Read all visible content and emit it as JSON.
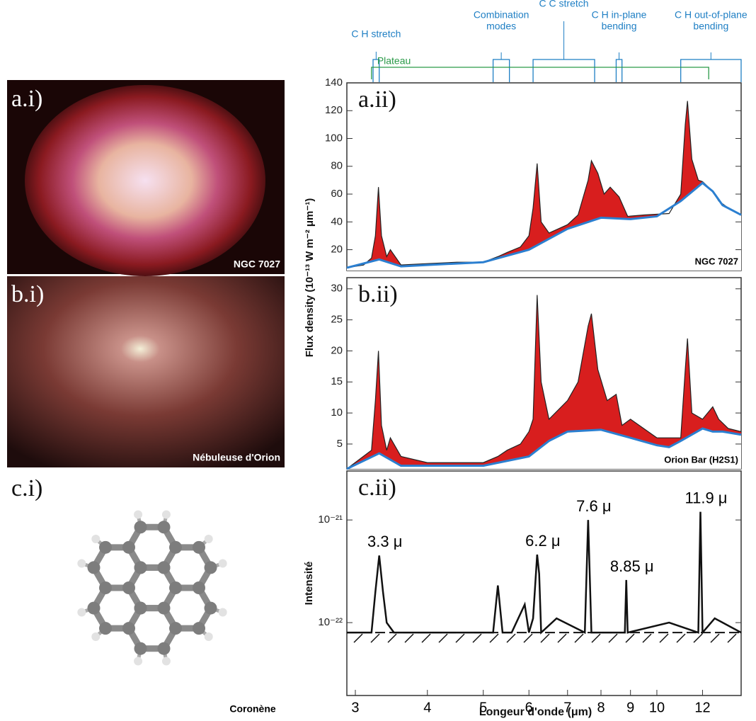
{
  "panels": [
    {
      "label": "a.i)",
      "caption": "NGC 7027"
    },
    {
      "label": "b.i)",
      "caption": "Nébuleuse d'Orion"
    },
    {
      "label": "c.i)",
      "caption": "Coronène"
    }
  ],
  "chart_data": [
    {
      "type": "line",
      "label": "a.ii)",
      "caption": "NGC 7027",
      "ylabel": "Flux density (10⁻¹³ W m⁻² μm⁻¹)",
      "xscale": "log",
      "xlim": [
        2.9,
        14
      ],
      "ylim": [
        5,
        140
      ],
      "yticks": [
        20,
        40,
        60,
        80,
        100,
        120,
        140
      ],
      "bands": [
        {
          "lines": [
            "C H stretch"
          ],
          "range": [
            3.22,
            3.3
          ],
          "color": "#1f7fc4"
        },
        {
          "lines": [
            "Combination",
            "modes"
          ],
          "range": [
            5.2,
            5.55
          ],
          "color": "#1f7fc4"
        },
        {
          "lines": [
            "C C stretch"
          ],
          "range": [
            6.1,
            7.8
          ],
          "color": "#1f7fc4"
        },
        {
          "lines": [
            "C H in-plane",
            "bending"
          ],
          "range": [
            8.5,
            8.7
          ],
          "color": "#1f7fc4"
        },
        {
          "lines": [
            "C H out-of-plane",
            "bending"
          ],
          "range": [
            11,
            14
          ],
          "color": "#1f7fc4"
        },
        {
          "lines": [
            "Plateau"
          ],
          "range": [
            3.2,
            12.3
          ],
          "color": "#2a9a48"
        }
      ],
      "fill_color": "#d81e1e",
      "series": [
        {
          "color": "#222222",
          "x": [
            2.9,
            3.1,
            3.2,
            3.25,
            3.29,
            3.33,
            3.4,
            3.45,
            3.6,
            4,
            4.5,
            5,
            5.3,
            5.5,
            5.8,
            6.0,
            6.1,
            6.2,
            6.3,
            6.5,
            7,
            7.3,
            7.6,
            7.7,
            7.9,
            8.1,
            8.3,
            8.6,
            8.9,
            9.5,
            10.5,
            11,
            11.2,
            11.3,
            11.5,
            11.8,
            12,
            12.5,
            12.8,
            13.3,
            14
          ],
          "values": [
            7,
            9,
            14,
            30,
            65,
            30,
            15,
            20,
            9,
            10,
            11,
            11,
            15,
            18,
            22,
            30,
            50,
            82,
            40,
            32,
            38,
            45,
            70,
            84,
            75,
            60,
            65,
            58,
            44,
            45,
            46,
            60,
            110,
            127,
            85,
            70,
            69,
            62,
            55,
            50,
            45
          ]
        },
        {
          "color": "#2b7fd0",
          "x": [
            2.9,
            3.3,
            3.6,
            4,
            5,
            6,
            7,
            8,
            9,
            10,
            11,
            12,
            12.5,
            13,
            14
          ],
          "values": [
            7,
            13,
            8,
            9,
            11,
            20,
            35,
            43,
            42,
            44,
            55,
            68,
            62,
            52,
            45
          ]
        }
      ]
    },
    {
      "type": "line",
      "label": "b.ii)",
      "caption": "Orion Bar (H2S1)",
      "xscale": "log",
      "xlim": [
        2.9,
        14
      ],
      "ylim": [
        1,
        31.8
      ],
      "yticks": [
        5,
        10,
        15,
        20,
        25,
        30
      ],
      "fill_color": "#d81e1e",
      "series": [
        {
          "color": "#222222",
          "x": [
            2.9,
            3.2,
            3.25,
            3.29,
            3.33,
            3.4,
            3.45,
            3.6,
            4,
            5,
            5.3,
            5.5,
            5.8,
            6.0,
            6.1,
            6.2,
            6.3,
            6.5,
            7,
            7.3,
            7.6,
            7.7,
            7.9,
            8.2,
            8.5,
            8.7,
            9,
            10,
            11,
            11.2,
            11.3,
            11.5,
            12,
            12.5,
            12.8,
            13.3,
            14
          ],
          "values": [
            1,
            4,
            12,
            20,
            8,
            4,
            6,
            3,
            2,
            2,
            3,
            4,
            5,
            7,
            9,
            29,
            15,
            9,
            12,
            15,
            24,
            26,
            17,
            12,
            13,
            8,
            9,
            6,
            6,
            17,
            22,
            10,
            9,
            11,
            9,
            7.5,
            7
          ]
        },
        {
          "color": "#2b7fd0",
          "x": [
            2.9,
            3.3,
            3.6,
            4,
            5,
            6,
            6.5,
            7,
            8,
            9,
            10,
            10.5,
            11,
            12,
            12.5,
            13,
            14
          ],
          "values": [
            1,
            3.5,
            1.5,
            1.5,
            1.5,
            3,
            5.5,
            7,
            7.3,
            6,
            4.8,
            4.5,
            5.5,
            7.5,
            7,
            7,
            6.5
          ]
        }
      ]
    },
    {
      "type": "line",
      "label": "c.ii)",
      "ylabel": "Intensité",
      "xlabel": "Longeur d'onde (μm)",
      "xscale": "log",
      "yscale": "log",
      "xlim": [
        2.9,
        14
      ],
      "ylim": [
        1.95e-23,
        3e-21
      ],
      "xticks": [
        3,
        4,
        5,
        6,
        7,
        8,
        9,
        10,
        12
      ],
      "yticks": [
        {
          "value": 1e-22,
          "label": "10⁻²²"
        },
        {
          "value": 1e-21,
          "label": "10⁻²¹"
        }
      ],
      "annotations": [
        {
          "text": "3.3 μ",
          "x": 3.3,
          "y": 4.5e-22
        },
        {
          "text": "6.2 μ",
          "x": 6.2,
          "y": 4.6e-22
        },
        {
          "text": "7.6 μ",
          "x": 7.6,
          "y": 1e-21
        },
        {
          "text": "8.85 μ",
          "x": 8.85,
          "y": 2.6e-22
        },
        {
          "text": "11.9 μ",
          "x": 11.9,
          "y": 1.2e-21
        }
      ],
      "series": [
        {
          "color": "#111111",
          "x": [
            2.9,
            3.2,
            3.25,
            3.3,
            3.35,
            3.4,
            3.5,
            5.2,
            5.3,
            5.4,
            5.6,
            5.9,
            6.0,
            6.1,
            6.2,
            6.25,
            6.3,
            6.7,
            7.5,
            7.6,
            7.7,
            8.8,
            8.85,
            8.9,
            10.5,
            11.8,
            11.9,
            12.0,
            12.6,
            14
          ],
          "values": [
            8e-23,
            8e-23,
            2e-22,
            4.5e-22,
            2e-22,
            1e-22,
            8e-23,
            8e-23,
            2.3e-22,
            8e-23,
            8e-23,
            1.5e-22,
            8e-23,
            1.1e-22,
            4.6e-22,
            3e-22,
            8e-23,
            1.1e-22,
            8e-23,
            1e-21,
            8e-23,
            8e-23,
            2.6e-22,
            8e-23,
            1e-22,
            8e-23,
            1.2e-21,
            8e-23,
            1.1e-22,
            8e-23
          ]
        }
      ]
    }
  ]
}
